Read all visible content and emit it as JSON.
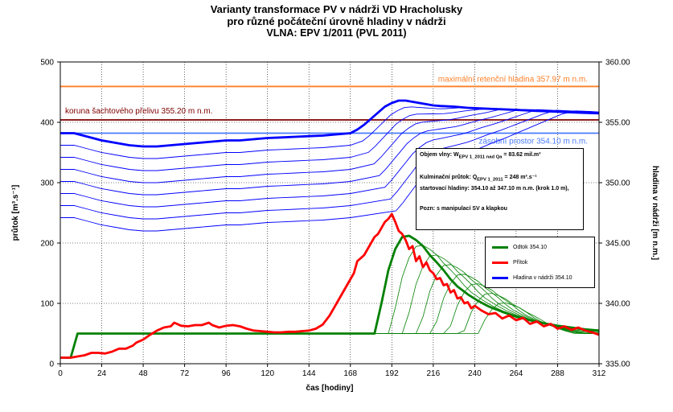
{
  "chart_data": {
    "type": "line",
    "title": [
      "Varianty transformace PV v nádrži VD Hracholusky",
      "pro různé počáteční úrovně hladiny v nádrži",
      "VLNA: EPV 1/2011   (PVL 2011)"
    ],
    "xlabel": "čas [hodiny]",
    "ylabel_left": "průtok [m³.s⁻¹]",
    "ylabel_right": "hladina v nádrži [m n.m.]",
    "xlim": [
      0,
      312
    ],
    "ylim_left": [
      0,
      500
    ],
    "ylim_right": [
      335.0,
      360.0
    ],
    "x_ticks": [
      "0",
      "24",
      "48",
      "72",
      "96",
      "120",
      "144",
      "168",
      "192",
      "216",
      "240",
      "264",
      "288",
      "312"
    ],
    "y_ticks_left": [
      "0",
      "100",
      "200",
      "300",
      "400",
      "500"
    ],
    "y_ticks_right": [
      "335.00",
      "340.00",
      "345.00",
      "350.00",
      "355.00",
      "360.00"
    ],
    "reference_lines": [
      {
        "label": "maximální retenční hladina 357.97 m n.m.",
        "level": 357.97,
        "color": "#ff7f27"
      },
      {
        "label": "koruna šachtového přelivu 355.20 m n.m.",
        "level": 355.2,
        "color": "#7f0000"
      },
      {
        "label": "zásobní prostor 354.10 m n.m.",
        "level": 354.1,
        "color": "#4a7bff"
      }
    ],
    "series": [
      {
        "name": "Přítok",
        "color": "#ff0000",
        "axis": "left",
        "x": [
          0,
          6,
          10,
          14,
          18,
          22,
          26,
          30,
          34,
          38,
          42,
          44,
          48,
          52,
          56,
          60,
          64,
          66,
          70,
          74,
          78,
          82,
          86,
          88,
          92,
          96,
          100,
          104,
          108,
          112,
          116,
          120,
          124,
          128,
          132,
          136,
          140,
          144,
          148,
          152,
          156,
          160,
          164,
          168,
          170,
          172,
          174,
          176,
          178,
          180,
          182,
          184,
          186,
          188,
          190,
          192,
          194,
          196,
          198,
          200,
          202,
          204,
          206,
          208,
          210,
          212,
          214,
          216,
          218,
          220,
          222,
          224,
          226,
          228,
          230,
          232,
          234,
          236,
          238,
          240,
          244,
          248,
          252,
          256,
          260,
          264,
          268,
          272,
          276,
          280,
          284,
          288,
          292,
          296,
          300,
          304,
          308,
          312
        ],
        "values": [
          10,
          10,
          12,
          14,
          18,
          18,
          17,
          20,
          25,
          25,
          30,
          35,
          40,
          48,
          55,
          60,
          62,
          68,
          63,
          62,
          64,
          64,
          68,
          64,
          60,
          63,
          64,
          62,
          58,
          55,
          54,
          53,
          52,
          52,
          53,
          53,
          54,
          55,
          58,
          65,
          80,
          100,
          120,
          140,
          150,
          170,
          175,
          180,
          190,
          200,
          210,
          215,
          225,
          235,
          240,
          248,
          235,
          220,
          215,
          205,
          190,
          195,
          170,
          178,
          160,
          168,
          155,
          150,
          140,
          142,
          130,
          132,
          118,
          122,
          108,
          110,
          100,
          102,
          92,
          96,
          88,
          82,
          84,
          75,
          80,
          72,
          76,
          66,
          70,
          62,
          66,
          58,
          62,
          56,
          60,
          55,
          52,
          48
        ]
      },
      {
        "name": "Odtok 354.10",
        "color": "#008000",
        "axis": "left",
        "x": [
          0,
          6,
          10,
          182,
          186,
          190,
          194,
          198,
          202,
          206,
          210,
          214,
          218,
          222,
          226,
          230,
          236,
          242,
          248,
          256,
          264,
          272,
          280,
          288,
          296,
          304,
          312
        ],
        "values": [
          10,
          10,
          50,
          50,
          100,
          155,
          190,
          210,
          212,
          205,
          195,
          180,
          168,
          155,
          140,
          128,
          115,
          104,
          95,
          86,
          78,
          72,
          67,
          63,
          60,
          57,
          55
        ]
      },
      {
        "name": "Hladina v nádrži 354.10",
        "color": "#0000ff",
        "axis": "right",
        "x": [
          0,
          8,
          16,
          24,
          32,
          40,
          48,
          56,
          64,
          72,
          80,
          88,
          96,
          104,
          112,
          120,
          128,
          136,
          144,
          152,
          160,
          168,
          172,
          176,
          180,
          184,
          188,
          192,
          196,
          200,
          204,
          208,
          212,
          216,
          220,
          228,
          236,
          244,
          252,
          260,
          268,
          276,
          284,
          292,
          300,
          312
        ],
        "values": [
          354.1,
          354.1,
          353.8,
          353.5,
          353.3,
          353.1,
          353.0,
          353.0,
          353.1,
          353.2,
          353.3,
          353.4,
          353.5,
          353.5,
          353.6,
          353.7,
          353.75,
          353.8,
          353.85,
          353.9,
          354.0,
          354.1,
          354.4,
          354.8,
          355.3,
          355.8,
          356.3,
          356.6,
          356.8,
          356.8,
          356.7,
          356.6,
          356.5,
          356.4,
          356.35,
          356.3,
          356.2,
          356.15,
          356.1,
          356.05,
          356.0,
          355.95,
          355.9,
          355.85,
          355.8,
          355.75
        ]
      }
    ],
    "legend": [
      "Odtok 354.10",
      "Přítok",
      "Hladina v nádrži 354.10"
    ],
    "variant_count": 8
  },
  "note": {
    "line1": "Objem vlny: W",
    "line1_sub": "EPV 1_2011 nad Qa",
    "line1_val": " = 83.62 mil.m³",
    "line2": "Kulminační průtok: Q",
    "line2_sub": "EPV 1_2011",
    "line2_val": " = 248 m³.s⁻¹",
    "line3": "startovací hladiny: 354.10 až 347.10 m n.m. (krok 1.0 m),",
    "line4": "Pozn: s manipulací SV a klapkou"
  }
}
